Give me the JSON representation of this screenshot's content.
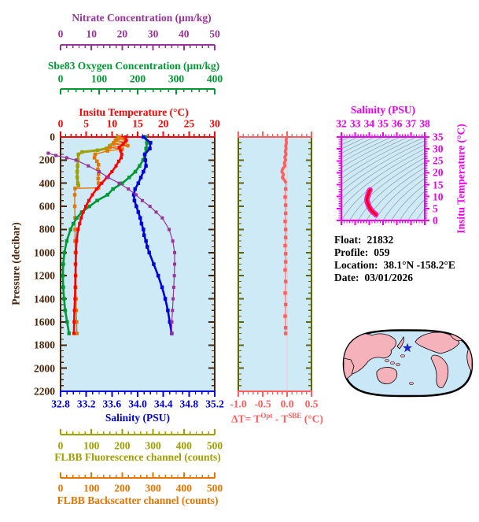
{
  "colors": {
    "plot_background": "#cdeaf6",
    "page_background": "#ffffff",
    "pressure_axis": "#4a2408",
    "nitrate": "#993399",
    "oxygen": "#009933",
    "temperature": "#ff0000",
    "salinity": "#0000dd",
    "fluorescence": "#9f9f00",
    "backscatter": "#e87400",
    "delta_t": "#ff5f5f",
    "delta_t_side_axis": "#5f6600",
    "ts_axis": "#ee00ee",
    "ts_curve_core": "#ff0000",
    "ts_curve_halo": "#ee22cc",
    "contour_gray": "#9aa4aa",
    "map_land": "#f5b2ba",
    "map_ocean": "#c9e7f7",
    "map_outline": "#000000",
    "map_star": "#2222cc"
  },
  "info": {
    "float_label": "Float:",
    "float_value": "21832",
    "profile_label": "Profile:",
    "profile_value": "059",
    "location_label": "Location:",
    "location_value": "38.1°N  -158.2°E",
    "date_label": "Date:",
    "date_value": "03/01/2026"
  },
  "chart_data": [
    {
      "id": "profile-plot",
      "type": "line",
      "y_axis": {
        "label": "Pressure (decibar)",
        "range": [
          0,
          2200
        ],
        "ticks": [
          "0",
          "200",
          "400",
          "600",
          "800",
          "1000",
          "1200",
          "1400",
          "1600",
          "1800",
          "2000",
          "2200"
        ],
        "minor": 50,
        "color": "#4a2408"
      },
      "x_axes": [
        {
          "id": "nitrate",
          "label": "Nitrate Concentration (µm/kg)",
          "range": [
            0,
            50
          ],
          "ticks": [
            "0",
            "10",
            "20",
            "30",
            "40",
            "50"
          ],
          "minor": 2,
          "color": "#993399"
        },
        {
          "id": "oxygen",
          "label": "Sbe83 Oxygen Concentration (µm/kg)",
          "range": [
            0,
            400
          ],
          "ticks": [
            "0",
            "100",
            "200",
            "300",
            "400"
          ],
          "minor": 20,
          "color": "#009933"
        },
        {
          "id": "temperature",
          "label": "Insitu Temperature (°C)",
          "range": [
            0,
            30
          ],
          "ticks": [
            "0",
            "5",
            "10",
            "15",
            "20",
            "25",
            "30"
          ],
          "minor": 1,
          "color": "#ff0000"
        },
        {
          "id": "salinity",
          "label": "Salinity (PSU)",
          "range": [
            32.8,
            35.2
          ],
          "ticks": [
            "32.8",
            "33.2",
            "33.6",
            "34.0",
            "34.4",
            "34.8",
            "35.2"
          ],
          "minor": 0.1,
          "color": "#0000dd"
        },
        {
          "id": "fluorescence",
          "label": "FLBB Fluorescence channel (counts)",
          "range": [
            0,
            500
          ],
          "ticks": [
            "0",
            "100",
            "200",
            "300",
            "400",
            "500"
          ],
          "minor": 20,
          "color": "#9f9f00"
        },
        {
          "id": "backscatter",
          "label": "FLBB Backscatter channel (counts)",
          "range": [
            0,
            500
          ],
          "ticks": [
            "0",
            "100",
            "200",
            "300",
            "400",
            "500"
          ],
          "minor": 20,
          "color": "#e87400"
        }
      ],
      "series": [
        {
          "name": "fluorescence",
          "axis": "fluorescence",
          "color": "#9f9f00",
          "pressure": [
            0,
            25,
            50,
            75,
            100,
            115,
            130,
            150,
            200,
            250,
            300,
            350,
            400,
            420
          ],
          "values": [
            186,
            180,
            172,
            160,
            148,
            120,
            70,
            58,
            56,
            55,
            54,
            54,
            56,
            58
          ]
        },
        {
          "name": "backscatter",
          "axis": "backscatter",
          "color": "#e87400",
          "pressure": [
            0,
            15,
            30,
            45,
            60,
            75,
            90,
            105,
            120,
            150,
            180,
            210,
            240,
            280,
            320,
            360,
            400,
            440,
            445,
            500,
            600,
            700,
            800,
            900,
            1000,
            1100,
            1200,
            1300,
            1400,
            1500,
            1600,
            1700
          ],
          "values": [
            190,
            206,
            178,
            210,
            172,
            218,
            160,
            200,
            152,
            112,
            110,
            118,
            123,
            121,
            123,
            122,
            123,
            123,
            47,
            46,
            46,
            47,
            47,
            47,
            48,
            48,
            49,
            49,
            50,
            51,
            52,
            53
          ]
        },
        {
          "name": "oxygen",
          "axis": "oxygen",
          "color": "#009933",
          "pressure": [
            0,
            50,
            100,
            150,
            200,
            250,
            300,
            350,
            400,
            450,
            500,
            550,
            600,
            650,
            700,
            750,
            800,
            900,
            1000,
            1100,
            1200,
            1300,
            1400,
            1500,
            1600,
            1700
          ],
          "values": [
            220,
            224,
            222,
            219,
            214,
            205,
            194,
            178,
            160,
            136,
            122,
            95,
            75,
            55,
            42,
            33,
            26,
            16,
            10,
            7,
            6,
            7,
            9,
            12,
            17,
            22
          ]
        },
        {
          "name": "temperature",
          "axis": "temperature",
          "color": "#ff0000",
          "pressure": [
            0,
            30,
            60,
            90,
            120,
            150,
            180,
            210,
            250,
            300,
            350,
            400,
            450,
            500,
            550,
            600,
            650,
            700,
            750,
            800,
            900,
            1000,
            1100,
            1200,
            1300,
            1400,
            1500,
            1600,
            1700
          ],
          "values": [
            12.6,
            12.8,
            12.2,
            11.4,
            11.7,
            11.9,
            11.8,
            11.3,
            10.8,
            10.0,
            9.0,
            8.0,
            7.0,
            6.2,
            5.5,
            4.9,
            4.4,
            4.0,
            3.7,
            3.4,
            3.1,
            3.0,
            2.95,
            2.9,
            2.85,
            2.8,
            2.7,
            2.65,
            2.6
          ]
        },
        {
          "name": "salinity",
          "axis": "salinity",
          "color": "#0000dd",
          "pressure": [
            0,
            50,
            100,
            150,
            200,
            250,
            300,
            350,
            400,
            450,
            500,
            550,
            600,
            650,
            700,
            750,
            800,
            850,
            900,
            950,
            1000,
            1100,
            1200,
            1300,
            1400,
            1500,
            1600,
            1700
          ],
          "values": [
            34.09,
            34.2,
            34.19,
            34.11,
            34.12,
            34.13,
            34.09,
            34.05,
            34.01,
            33.96,
            33.94,
            33.95,
            33.98,
            34.01,
            34.04,
            34.06,
            34.09,
            34.1,
            34.13,
            34.15,
            34.18,
            34.25,
            34.32,
            34.38,
            34.43,
            34.47,
            34.5,
            34.53
          ]
        },
        {
          "name": "nitrate",
          "axis": "nitrate",
          "color": "#993399",
          "pressure": [
            140,
            160,
            180,
            200,
            250,
            300,
            350,
            400,
            450,
            500,
            550,
            600,
            650,
            700,
            800,
            900,
            1000,
            1100,
            1200,
            1300,
            1400,
            1500,
            1600,
            1700
          ],
          "values": [
            -4,
            -1.5,
            2,
            5,
            9,
            12.5,
            15.5,
            19,
            22,
            24.5,
            26.5,
            29,
            31,
            33,
            35.2,
            36.4,
            37,
            37,
            36.9,
            36.7,
            36.5,
            36.3,
            36.1,
            36
          ]
        }
      ]
    },
    {
      "id": "delta-t-plot",
      "type": "line",
      "x_axis": {
        "label_parts": {
          "p1": "ΔT= T",
          "sup1": "Opt",
          "p2": " - T",
          "sup2": "SBE",
          "p3": " (°C)"
        },
        "range": [
          -1.0,
          0.5
        ],
        "ticks": [
          "-1.0",
          "-0.5",
          "0.0",
          "0.5"
        ],
        "minor": 0.1,
        "color": "#ff5f5f"
      },
      "y_axis": {
        "range": [
          0,
          2200
        ],
        "minor": 50,
        "major": 200,
        "color": "#5f6600"
      },
      "series": {
        "name": "delta-t",
        "color": "#ff5f5f",
        "pressure": [
          0,
          25,
          50,
          75,
          100,
          125,
          150,
          175,
          200,
          225,
          250,
          275,
          300,
          325,
          350,
          375,
          400,
          450,
          520,
          590,
          660,
          730,
          800,
          870,
          940,
          1010,
          1080,
          1150,
          1250,
          1350,
          1450,
          1550,
          1650,
          1700
        ],
        "values": [
          -0.01,
          -0.02,
          -0.01,
          -0.03,
          -0.02,
          -0.04,
          -0.02,
          -0.05,
          -0.03,
          -0.06,
          -0.04,
          -0.09,
          -0.11,
          -0.07,
          -0.1,
          -0.05,
          -0.02,
          -0.03,
          -0.04,
          -0.03,
          -0.03,
          -0.04,
          -0.03,
          -0.03,
          -0.04,
          -0.03,
          -0.03,
          -0.04,
          -0.03,
          -0.04,
          -0.03,
          -0.04,
          -0.03,
          -0.03
        ]
      }
    },
    {
      "id": "ts-diagram",
      "type": "line",
      "x_axis": {
        "label": "Salinity (PSU)",
        "range": [
          32,
          38
        ],
        "ticks": [
          "32",
          "33",
          "34",
          "35",
          "36",
          "37",
          "38"
        ],
        "minor": 0.2,
        "color": "#ee00ee"
      },
      "y_axis": {
        "label": "Insitu Temperature (°C)",
        "range": [
          0,
          35
        ],
        "ticks": [
          "0",
          "5",
          "10",
          "15",
          "20",
          "25",
          "30",
          "35"
        ],
        "minor": 1,
        "color": "#ee00ee"
      },
      "curve": {
        "salinity": [
          34.06,
          34.0,
          33.95,
          33.9,
          33.86,
          33.84,
          33.87,
          33.92,
          33.97,
          34.03,
          34.11,
          34.21,
          34.31,
          34.4,
          34.46,
          34.48
        ],
        "temperature": [
          12.8,
          12.2,
          11.3,
          10.3,
          9.5,
          8.7,
          7.7,
          6.9,
          6.1,
          5.3,
          4.6,
          3.9,
          3.3,
          2.9,
          2.6,
          2.4
        ]
      },
      "background_contours": "density isopycnal lines"
    },
    {
      "id": "world-map",
      "type": "map",
      "projection": "pacific-centered ellipse",
      "marker": "float-position-star"
    }
  ]
}
